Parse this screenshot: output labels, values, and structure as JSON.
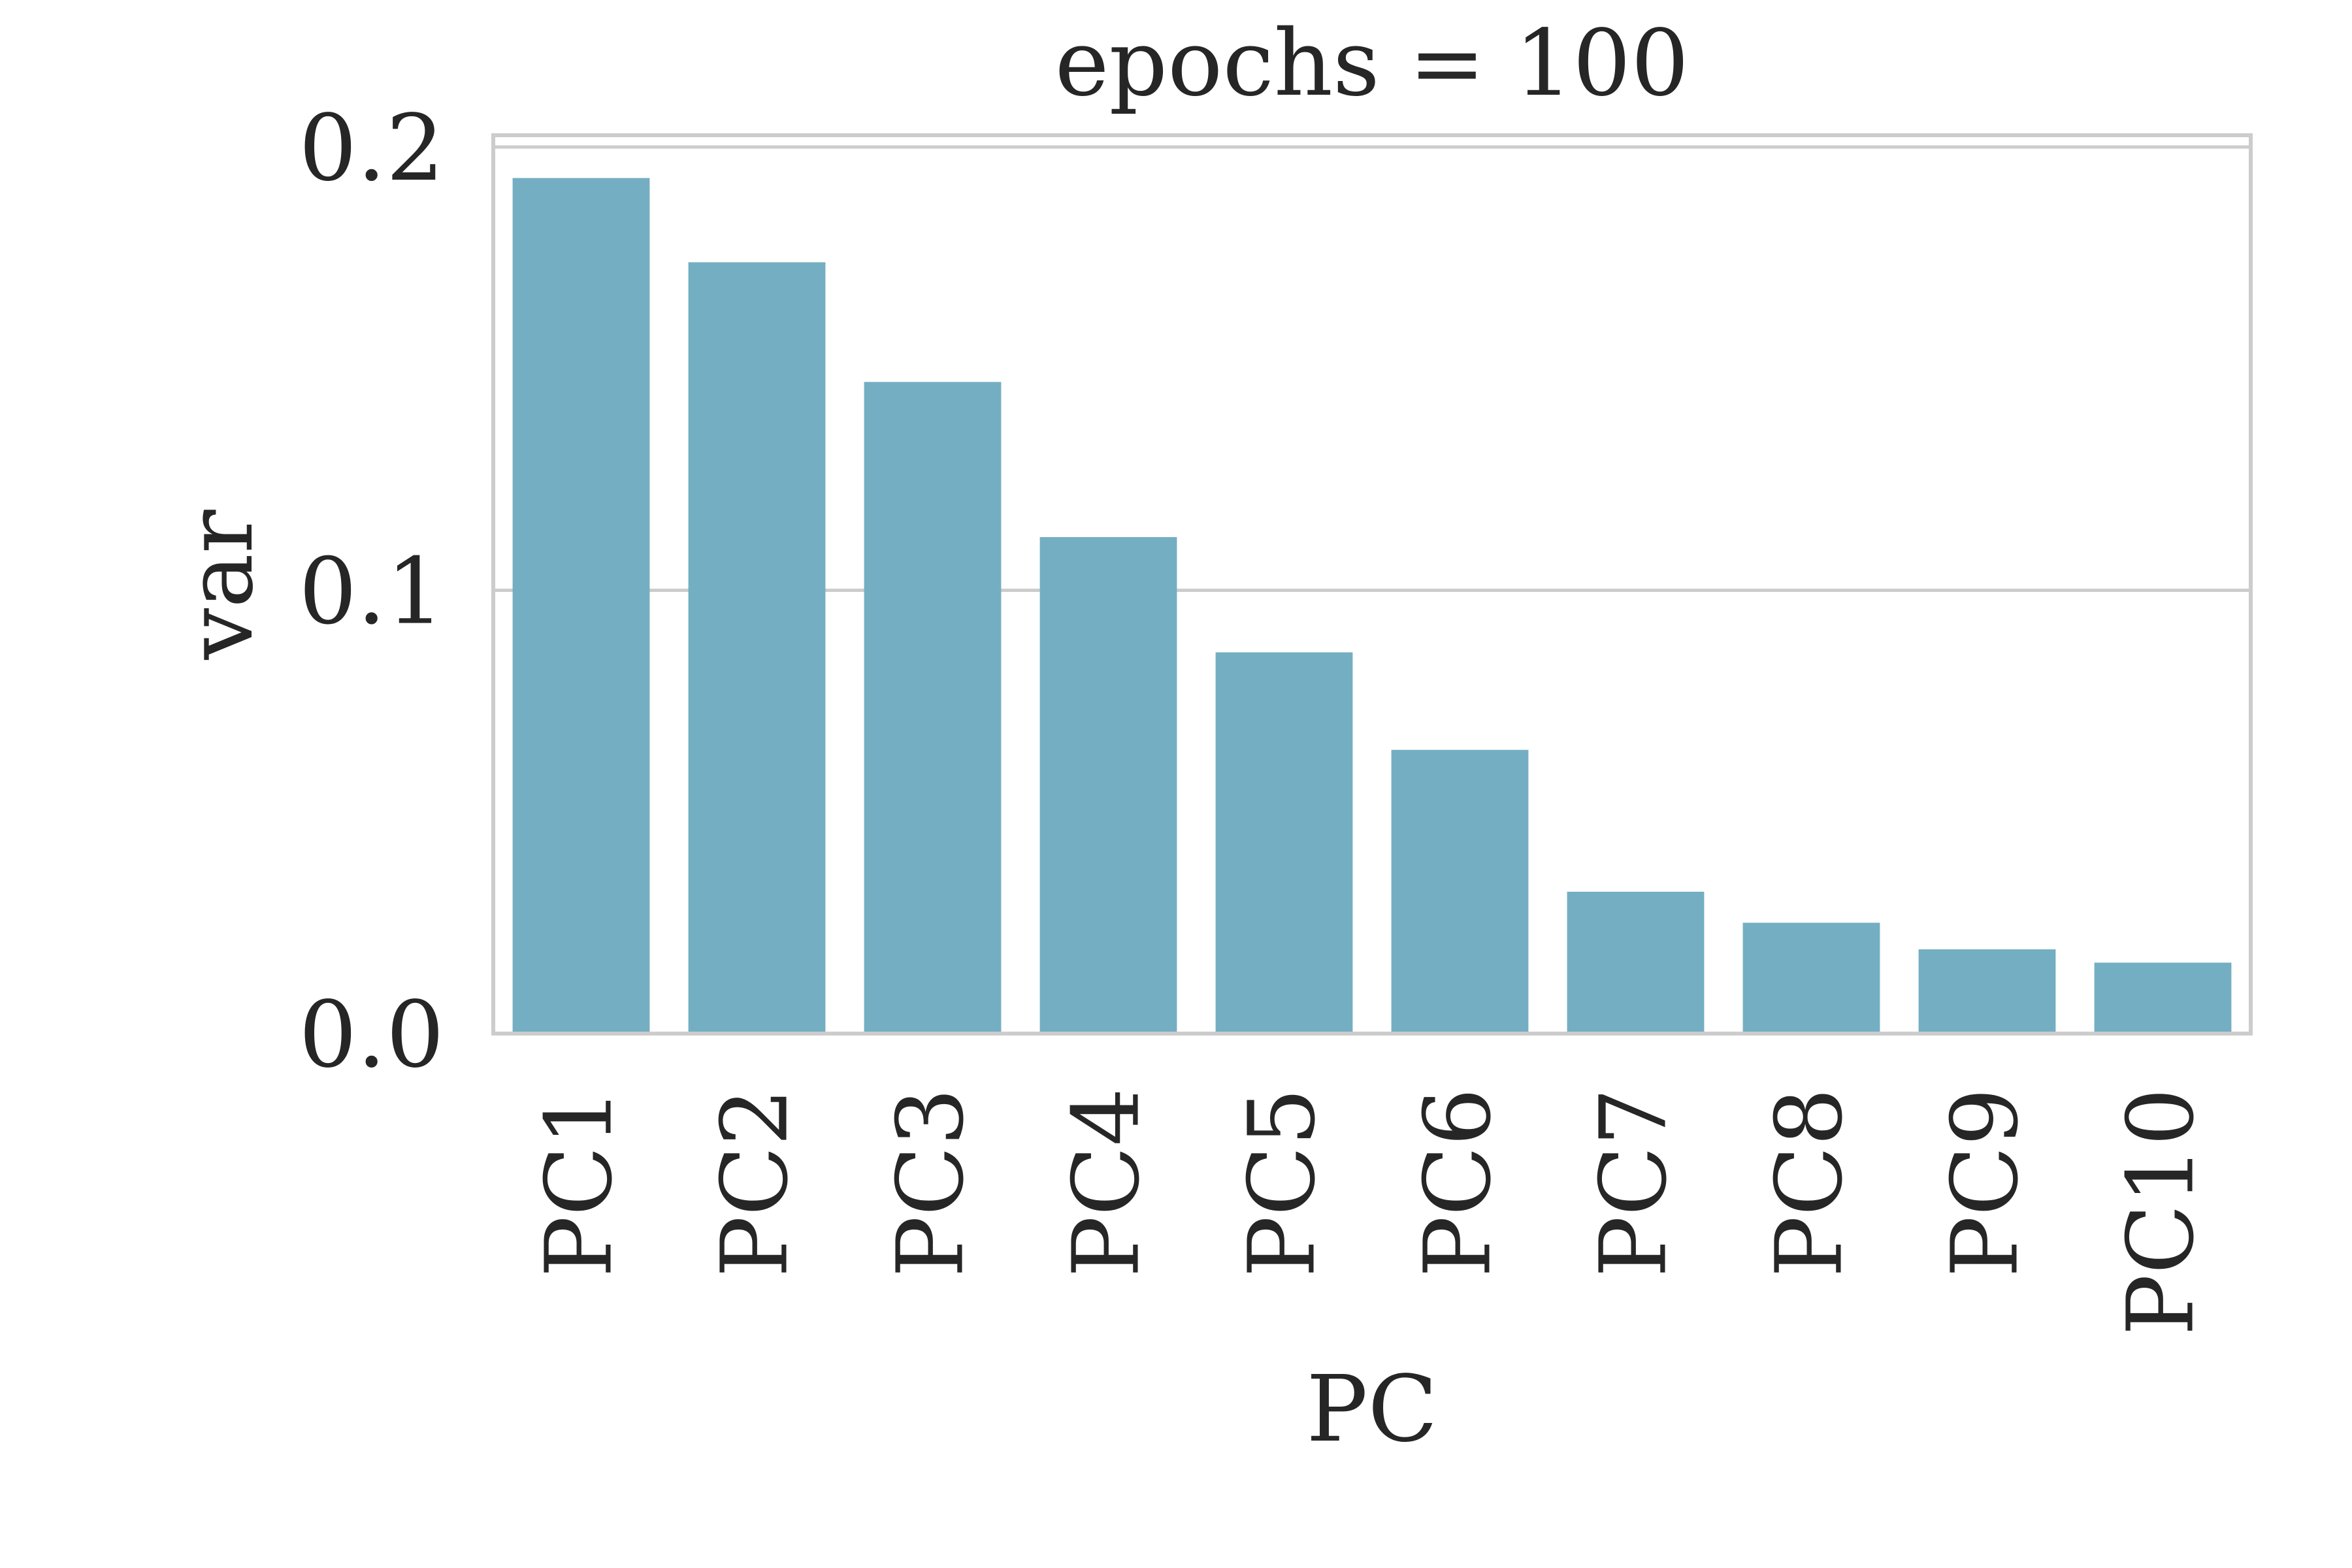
{
  "chart_data": {
    "type": "bar",
    "title": "epochs = 100",
    "xlabel": "PC",
    "ylabel": "var",
    "categories": [
      "PC1",
      "PC2",
      "PC3",
      "PC4",
      "PC5",
      "PC6",
      "PC7",
      "PC8",
      "PC9",
      "PC10"
    ],
    "values": [
      0.193,
      0.174,
      0.147,
      0.112,
      0.086,
      0.064,
      0.032,
      0.025,
      0.019,
      0.016
    ],
    "ylim": [
      0,
      0.2
    ],
    "yticks": [
      "0.0",
      "0.1",
      "0.2"
    ],
    "grid": "y",
    "colors": {
      "bar": "#74aec2",
      "grid": "#cccccc",
      "frame": "#cccccc",
      "text": "#262626"
    }
  }
}
